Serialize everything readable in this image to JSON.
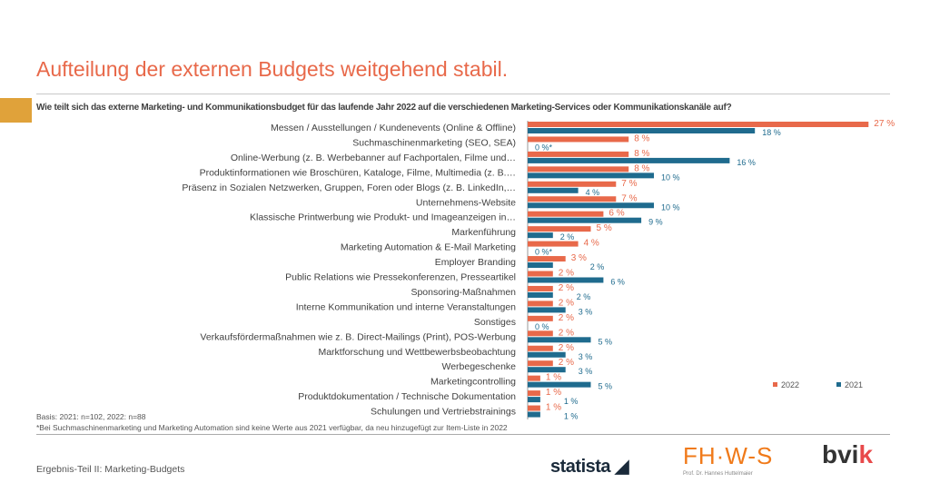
{
  "title": "Aufteilung der externen Budgets weitgehend stabil.",
  "question": "Wie teilt sich das externe Marketing- und Kommunikationsbudget für das laufende Jahr 2022 auf die verschiedenen Marketing-Services oder Kommunikationskanäle auf?",
  "notes": {
    "basis": "Basis: 2021: n=102, 2022: n=88",
    "footnote": "*Bei Suchmaschinenmarketing und Marketing Automation sind keine Werte aus 2021 verfügbar, da neu hinzugefügt zur Item-Liste in 2022"
  },
  "footer": "Ergebnis-Teil II: Marketing-Budgets",
  "logos": {
    "statista": "statista",
    "fhws": "FH·W-S",
    "fhws_sub": "Prof. Dr. Hannes Huttelmaier",
    "bvik": "bvik"
  },
  "colors": {
    "2022": "#E8694A",
    "2021": "#1F6B8E",
    "title": "#E8694A",
    "tag": "#E0A23A"
  },
  "chart_data": {
    "type": "bar",
    "orientation": "horizontal",
    "unit": "%",
    "legend_position": "bottom-right",
    "grid": false,
    "categories": [
      "Messen / Ausstellungen / Kundenevents (Online & Offline)",
      "Suchmaschinenmarketing (SEO, SEA)",
      "Online-Werbung (z. B. Werbebanner auf Fachportalen, Filme und…",
      "Produktinformationen wie Broschüren, Kataloge, Filme, Multimedia (z. B.…",
      "Präsenz in Sozialen Netzwerken, Gruppen, Foren oder Blogs (z. B. LinkedIn,…",
      "Unternehmens-Website",
      "Klassische Printwerbung wie Produkt- und Imageanzeigen in…",
      "Markenführung",
      "Marketing Automation & E-Mail Marketing",
      "Employer Branding",
      "Public Relations wie Pressekonferenzen, Presseartikel",
      "Sponsoring-Maßnahmen",
      "Interne Kommunikation und interne Veranstaltungen",
      "Sonstiges",
      "Verkaufsfördermaßnahmen wie z. B. Direct-Mailings (Print), POS-Werbung",
      "Marktforschung und Wettbewerbsbeobachtung",
      "Werbegeschenke",
      "Marketingcontrolling",
      "Produktdokumentation / Technische Dokumentation",
      "Schulungen und Vertriebstrainings"
    ],
    "series": [
      {
        "name": "2022",
        "values": [
          27,
          8,
          8,
          8,
          7,
          7,
          6,
          5,
          4,
          3,
          2,
          2,
          2,
          2,
          2,
          2,
          2,
          1,
          1,
          1
        ],
        "labels": [
          "27 %",
          "8 %",
          "8 %",
          "8 %",
          "7 %",
          "7 %",
          "6 %",
          "5 %",
          "4 %",
          "3 %",
          "2 %",
          "2 %",
          "2 %",
          "2 %",
          "2 %",
          "2 %",
          "2 %",
          "1 %",
          "1 %",
          "1 %"
        ]
      },
      {
        "name": "2021",
        "values": [
          18,
          0,
          16,
          10,
          4,
          10,
          9,
          2,
          0,
          2,
          6,
          2,
          3,
          0,
          5,
          3,
          3,
          5,
          1,
          1
        ],
        "labels": [
          "18 %",
          "0 %*",
          "16 %",
          "10 %",
          "4 %",
          "10 %",
          "9 %",
          "2 %",
          "0 %*",
          "2 %",
          "6 %",
          "2 %",
          "3 %",
          "0 %",
          "5 %",
          "3 %",
          "3 %",
          "5 %",
          "1 %",
          "1 %"
        ]
      }
    ]
  }
}
